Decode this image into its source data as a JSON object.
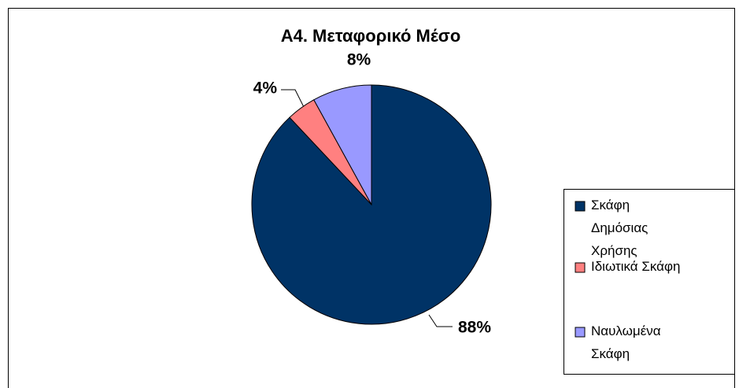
{
  "chart_data": {
    "type": "pie",
    "title": "A4. Μεταφορικό Μέσο",
    "categories": [
      "Σκάφη Δημόσιας Χρήσης",
      "Ιδιωτικά Σκάφη",
      "Ναυλωμένα Σκάφη"
    ],
    "values": [
      88,
      4,
      8
    ],
    "value_labels": [
      "88%",
      "4%",
      "8%"
    ],
    "colors": [
      "#003366",
      "#ff8080",
      "#9999ff"
    ],
    "legend": "right"
  }
}
